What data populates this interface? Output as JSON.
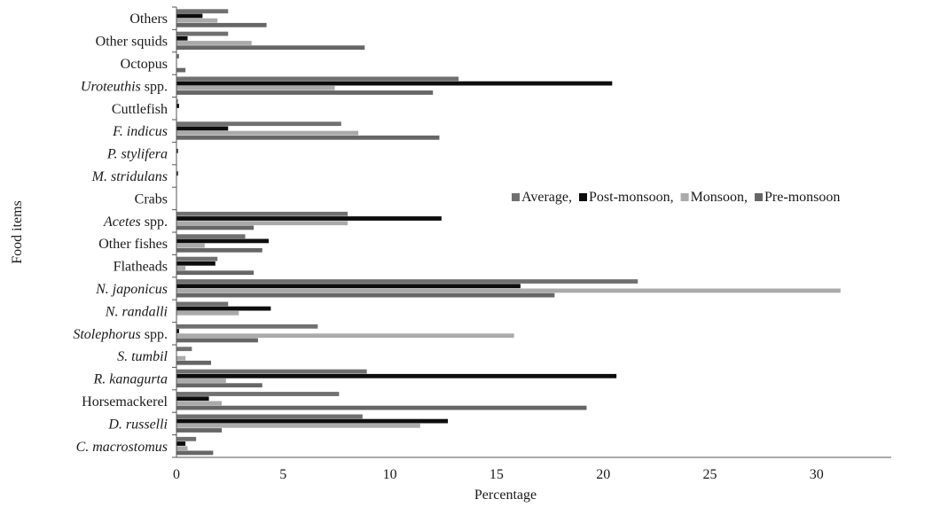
{
  "chart_data": {
    "type": "bar",
    "orientation": "horizontal",
    "xlabel": "Percentage",
    "ylabel": "Food items",
    "xlim": [
      0,
      33.5
    ],
    "xticks": [
      "0",
      "5",
      "10",
      "15",
      "20",
      "25",
      "30"
    ],
    "xtick_values": [
      0,
      5,
      10,
      15,
      20,
      25,
      30
    ],
    "grid": false,
    "legend_position": "right",
    "categories": [
      {
        "label": "Others",
        "italic": false
      },
      {
        "label": "Other squids",
        "italic": false
      },
      {
        "label": "Octopus",
        "italic": false
      },
      {
        "label": "Uroteuthis",
        "suffix": " spp.",
        "italic": true
      },
      {
        "label": "Cuttlefish",
        "italic": false
      },
      {
        "label": "F. indicus",
        "italic": true
      },
      {
        "label": "P. stylifera",
        "italic": true
      },
      {
        "label": "M. stridulans",
        "italic": true
      },
      {
        "label": "Crabs",
        "italic": false
      },
      {
        "label": "Acetes",
        "suffix": " spp.",
        "italic": true
      },
      {
        "label": "Other fishes",
        "italic": false
      },
      {
        "label": "Flatheads",
        "italic": false
      },
      {
        "label": "N. japonicus",
        "italic": true
      },
      {
        "label": "N. randalli",
        "italic": true
      },
      {
        "label": "Stolephorus",
        "suffix": " spp.",
        "italic": true
      },
      {
        "label": "S. tumbil",
        "italic": true
      },
      {
        "label": "R. kanagurta",
        "italic": true
      },
      {
        "label": "Horsemackerel",
        "italic": false
      },
      {
        "label": "D. russelli",
        "italic": true
      },
      {
        "label": "C. macrostomus",
        "italic": true
      }
    ],
    "series": [
      {
        "name": "Average,",
        "color": "#707070",
        "values": [
          2.4,
          2.4,
          0.1,
          13.2,
          0.05,
          7.7,
          0.0,
          0.0,
          0.0,
          8.0,
          3.2,
          1.9,
          21.6,
          2.4,
          6.6,
          0.7,
          8.9,
          7.6,
          8.7,
          0.9
        ]
      },
      {
        "name": "Post-monsoon,",
        "color": "#0d0d0d",
        "values": [
          1.2,
          0.5,
          0.0,
          20.4,
          0.1,
          2.4,
          0.05,
          0.05,
          0.0,
          12.4,
          4.3,
          1.8,
          16.1,
          4.4,
          0.1,
          0.0,
          20.6,
          1.5,
          12.7,
          0.4
        ]
      },
      {
        "name": "Monsoon,",
        "color": "#aaaaaa",
        "values": [
          1.9,
          3.5,
          0.0,
          7.4,
          0.0,
          8.5,
          0.0,
          0.0,
          0.0,
          8.0,
          1.3,
          0.4,
          31.1,
          2.9,
          15.8,
          0.4,
          2.3,
          2.1,
          11.4,
          0.5
        ]
      },
      {
        "name": "Pre-monsoon",
        "color": "#666666",
        "values": [
          4.2,
          8.8,
          0.4,
          12.0,
          0.0,
          12.3,
          0.0,
          0.0,
          0.0,
          3.6,
          4.0,
          3.6,
          17.7,
          0.0,
          3.8,
          1.6,
          4.0,
          19.2,
          2.1,
          1.7
        ]
      }
    ]
  }
}
